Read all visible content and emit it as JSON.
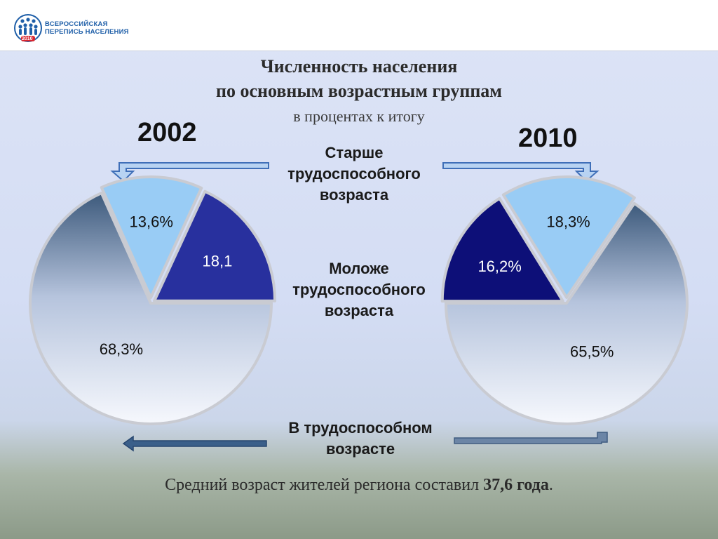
{
  "logo": {
    "line1": "ВСЕРОССИЙСКАЯ",
    "line2": "ПЕРЕПИСЬ НАСЕЛЕНИЯ",
    "year": "2010"
  },
  "title": {
    "line1": "Численность населения",
    "line2": "по основным возрастным группам",
    "subtitle": "в процентах к итогу"
  },
  "labels": {
    "older_line1": "Старше",
    "older_line2": "трудоспособного",
    "older_line3": "возраста",
    "younger_line1": "Моложе",
    "younger_line2": "трудоспособного",
    "younger_line3": "возраста",
    "working_line1": "В трудоспособном",
    "working_line2": "возрасте"
  },
  "footer": {
    "text": "Средний возраст жителей региона составил ",
    "bold": "37,6 года",
    "end": "."
  },
  "colors": {
    "older": "#99ccf5",
    "younger_2002": "#28309e",
    "younger_2010": "#0d0f78",
    "working_top": "#3d5a7c",
    "working_bottom": "#f6f8fd"
  },
  "chart_data": [
    {
      "type": "pie",
      "title": "2002",
      "categories": [
        "Старше трудоспособного возраста",
        "Моложе трудоспособного возраста",
        "В трудоспособном возрасте"
      ],
      "values": [
        13.6,
        18.1,
        68.3
      ],
      "labels": [
        "13,6%",
        "18,1",
        "68,3%"
      ]
    },
    {
      "type": "pie",
      "title": "2010",
      "categories": [
        "Старше трудоспособного возраста",
        "Моложе трудоспособного возраста",
        "В трудоспособном возрасте"
      ],
      "values": [
        18.3,
        16.2,
        65.5
      ],
      "labels": [
        "18,3%",
        "16,2%",
        "65,5%"
      ]
    }
  ]
}
